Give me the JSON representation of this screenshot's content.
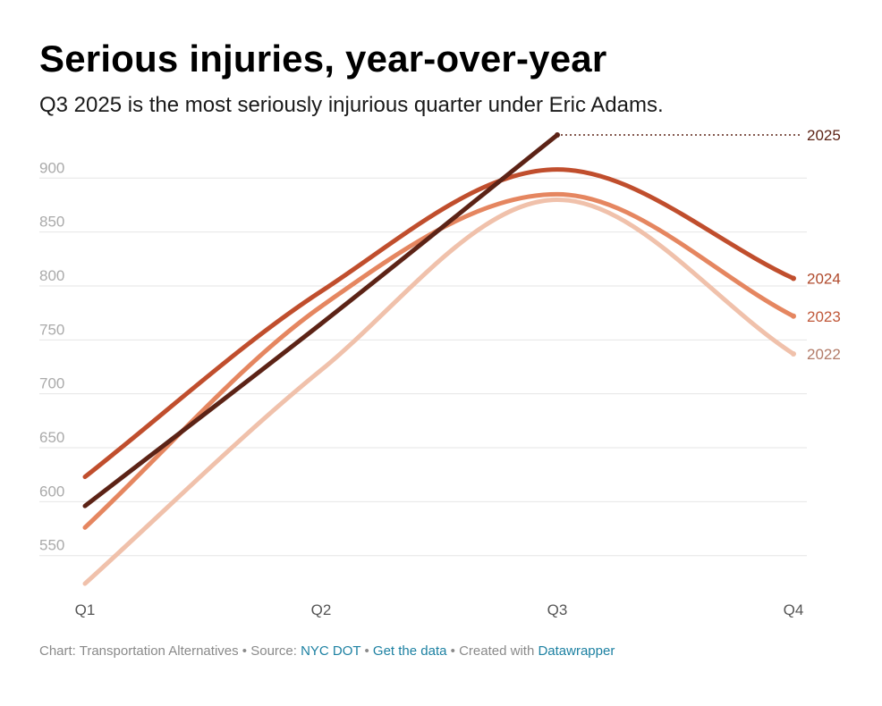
{
  "header": {
    "title": "Serious injuries, year-over-year",
    "subtitle": "Q3 2025 is the most seriously injurious quarter under Eric Adams."
  },
  "footer": {
    "chart_credit": "Chart: Transportation Alternatives",
    "sep1": " • ",
    "source_prefix": "Source: ",
    "source_link": "NYC DOT",
    "sep2": " • ",
    "data_link": "Get the data",
    "sep3": " • ",
    "created_prefix": "Created with ",
    "created_link": "Datawrapper"
  },
  "chart_data": {
    "type": "line",
    "title": "Serious injuries, year-over-year",
    "subtitle": "Q3 2025 is the most seriously injurious quarter under Eric Adams.",
    "categories": [
      "Q1",
      "Q2",
      "Q3",
      "Q4"
    ],
    "yticks": [
      550,
      600,
      650,
      700,
      750,
      800,
      850,
      900
    ],
    "ylim": [
      505,
      945
    ],
    "grid": true,
    "legend": "direct labels at line ends",
    "series": [
      {
        "name": "2022",
        "values": [
          524,
          722,
          880,
          737
        ],
        "color": "#f0c1ab"
      },
      {
        "name": "2023",
        "values": [
          576,
          781,
          885,
          772
        ],
        "color": "#e58660"
      },
      {
        "name": "2024",
        "values": [
          623,
          795,
          908,
          807
        ],
        "color": "#c04e2d"
      },
      {
        "name": "2025",
        "values": [
          596,
          765,
          940,
          null
        ],
        "color": "#5c2316"
      }
    ]
  }
}
